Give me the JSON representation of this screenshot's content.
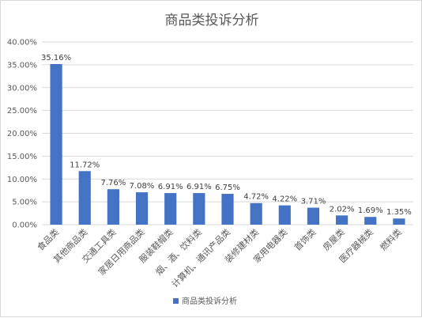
{
  "chart_data": {
    "type": "bar",
    "title": "商品类投诉分析",
    "categories": [
      "食品类",
      "其他商品类",
      "交通工具类",
      "家居日用商品类",
      "服装鞋帽类",
      "烟、酒、饮料类",
      "计算机、通讯产品类",
      "装修建材类",
      "家用电器类",
      "首饰类",
      "房屋类",
      "医疗器械类",
      "燃料类"
    ],
    "series": [
      {
        "name": "商品类投诉分析",
        "values": [
          35.16,
          11.72,
          7.76,
          7.08,
          6.91,
          6.91,
          6.75,
          4.72,
          4.22,
          3.71,
          2.02,
          1.69,
          1.35
        ],
        "labels": [
          "35.16%",
          "11.72%",
          "7.76%",
          "7.08%",
          "6.91%",
          "6.91%",
          "6.75%",
          "4.72%",
          "4.22%",
          "3.71%",
          "2.02%",
          "1.69%",
          "1.35%"
        ]
      }
    ],
    "ylim": [
      0,
      40
    ],
    "yticks": [
      0,
      5,
      10,
      15,
      20,
      25,
      30,
      35,
      40
    ],
    "ytick_labels": [
      "0.00%",
      "5.00%",
      "10.00%",
      "15.00%",
      "20.00%",
      "25.00%",
      "30.00%",
      "35.00%",
      "40.00%"
    ],
    "grid": true,
    "legend": "bottom",
    "colors": {
      "bar": "#4472c4",
      "grid": "#d9d9d9",
      "text": "#595959"
    }
  }
}
